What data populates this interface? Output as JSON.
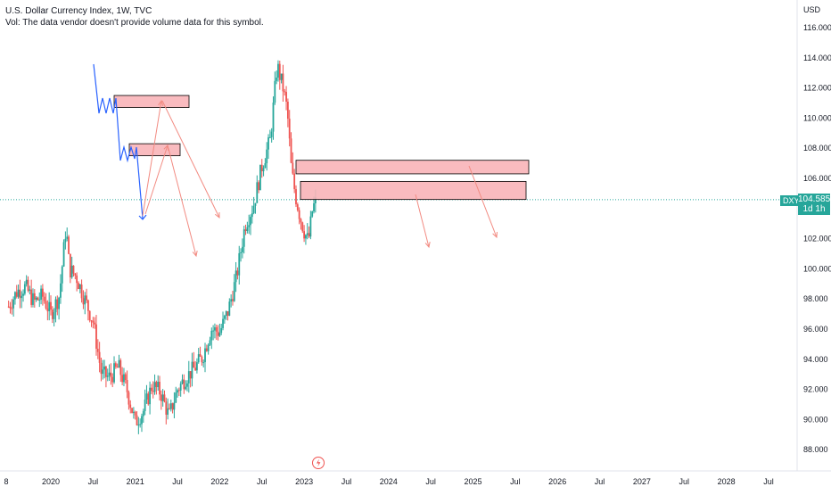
{
  "legend": {
    "title": "U.S. Dollar Currency Index, 1W, TVC",
    "volume_note": "Vol: The data vendor doesn't provide volume data for this symbol."
  },
  "price_axis": {
    "currency": "USD",
    "ticks": [
      "116.000",
      "114.000",
      "112.000",
      "110.000",
      "108.000",
      "106.000",
      "102.000",
      "100.000",
      "98.000",
      "96.000",
      "94.000",
      "92.000",
      "90.000",
      "88.000"
    ]
  },
  "time_axis": {
    "ticks": [
      "8",
      "2020",
      "Jul",
      "2021",
      "Jul",
      "2022",
      "Jul",
      "2023",
      "Jul",
      "2024",
      "Jul",
      "2025",
      "Jul",
      "2026",
      "Jul",
      "2027",
      "Jul",
      "2028",
      "Jul"
    ]
  },
  "current_price": {
    "symbol": "DXY",
    "value": "104.585",
    "countdown": "1d 1h"
  },
  "colors": {
    "up": "#26a69a",
    "down": "#ef5350",
    "zone_fill": "#f8b4b8",
    "arrow": "#f28b82",
    "path": "#2962ff",
    "price_line": "#26a69a"
  },
  "chart_data": {
    "type": "candlestick",
    "title": "U.S. Dollar Currency Index, 1W, TVC",
    "ylabel": "USD",
    "ylim": [
      87.5,
      117
    ],
    "xlim": [
      2019.45,
      2028.55
    ],
    "series": [
      {
        "name": "DXY",
        "x": [
          2019.5,
          2019.6,
          2019.7,
          2019.8,
          2019.9,
          2020.0,
          2020.1,
          2020.18,
          2020.22,
          2020.3,
          2020.4,
          2020.5,
          2020.6,
          2020.7,
          2020.8,
          2020.9,
          2021.0,
          2021.1,
          2021.2,
          2021.3,
          2021.4,
          2021.5,
          2021.6,
          2021.7,
          2021.8,
          2021.9,
          2022.0,
          2022.1,
          2022.2,
          2022.3,
          2022.4,
          2022.5,
          2022.6,
          2022.68,
          2022.75,
          2022.8,
          2022.85,
          2022.9,
          2022.95,
          2023.0,
          2023.05,
          2023.1,
          2023.15
        ],
        "values": [
          97.5,
          98.5,
          98.8,
          97.8,
          98.2,
          97.0,
          98.2,
          102.8,
          100.0,
          99.5,
          98.0,
          96.5,
          93.0,
          92.8,
          93.5,
          92.0,
          89.8,
          90.6,
          92.3,
          91.8,
          90.2,
          92.0,
          92.8,
          93.4,
          94.2,
          96.0,
          95.8,
          97.2,
          99.5,
          102.9,
          104.2,
          106.8,
          108.6,
          113.5,
          112.0,
          110.5,
          106.5,
          104.8,
          103.5,
          102.5,
          101.8,
          104.0,
          104.585
        ]
      }
    ],
    "zones": [
      {
        "top": 111.5,
        "bottom": 110.7
      },
      {
        "top": 108.3,
        "bottom": 107.5
      },
      {
        "top": 107.2,
        "bottom": 106.3
      },
      {
        "top": 105.8,
        "bottom": 104.6
      }
    ],
    "current_value": 104.585
  }
}
